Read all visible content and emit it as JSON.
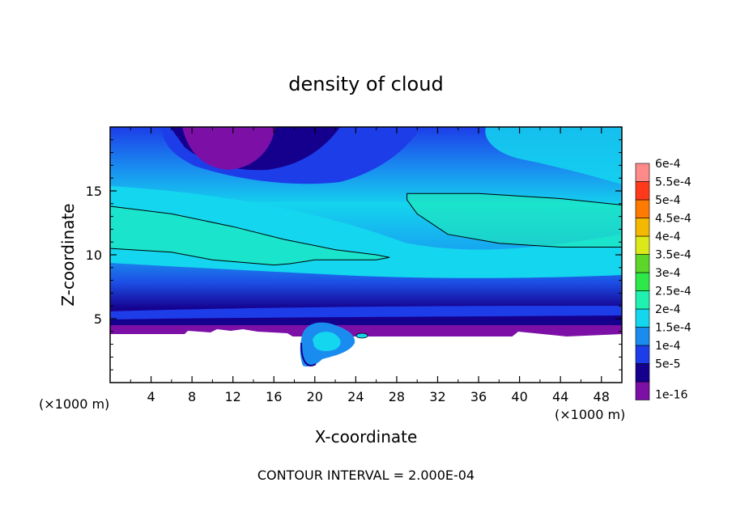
{
  "chart_data": {
    "type": "heatmap",
    "title": "density of cloud",
    "xlabel": "X-coordinate",
    "ylabel": "Z-coordinate",
    "x_unit_left": "(×1000 m)",
    "x_unit_right": "(×1000 m)",
    "xlim": [
      0,
      50
    ],
    "ylim": [
      0,
      20
    ],
    "x_ticks": [
      4,
      8,
      12,
      16,
      20,
      24,
      28,
      32,
      36,
      40,
      44,
      48
    ],
    "x_tick_labels": [
      "4",
      "8",
      "12",
      "16",
      "20",
      "24",
      "28",
      "32",
      "36",
      "40",
      "44",
      "48"
    ],
    "y_ticks": [
      5,
      10,
      15
    ],
    "y_tick_labels": [
      "5",
      "10",
      "15"
    ],
    "footer": "CONTOUR INTERVAL = 2.000E-04",
    "colorbar": {
      "levels": [
        {
          "label": "1e-16",
          "color": "#7b0fa6"
        },
        {
          "label": "5e-5",
          "color": "#15008e"
        },
        {
          "label": "1e-4",
          "color": "#1d3de8"
        },
        {
          "label": "1.5e-4",
          "color": "#1a8cf0"
        },
        {
          "label": "2e-4",
          "color": "#14d6ee"
        },
        {
          "label": "2.5e-4",
          "color": "#20f0b0"
        },
        {
          "label": "3e-4",
          "color": "#2ee84a"
        },
        {
          "label": "3.5e-4",
          "color": "#5cd628"
        },
        {
          "label": "4e-4",
          "color": "#dce81a"
        },
        {
          "label": "4.5e-4",
          "color": "#f5b800"
        },
        {
          "label": "5e-4",
          "color": "#ff7a00"
        },
        {
          "label": "5.5e-4",
          "color": "#ff3a1a"
        },
        {
          "label": "6e-4",
          "color": "#ff8a8a"
        }
      ]
    },
    "contour_2e-4": [
      [
        [
          0,
          13.8
        ],
        [
          6,
          13.2
        ],
        [
          12,
          12.2
        ],
        [
          17,
          11.2
        ],
        [
          22,
          10.4
        ],
        [
          26,
          10.0
        ],
        [
          27.3,
          9.8
        ],
        [
          26,
          9.6
        ],
        [
          20,
          9.6
        ],
        [
          17.5,
          9.3
        ],
        [
          16,
          9.2
        ],
        [
          10,
          9.6
        ],
        [
          6,
          10.2
        ],
        [
          0,
          10.5
        ]
      ],
      [
        [
          29,
          14.8
        ],
        [
          36,
          14.8
        ],
        [
          44,
          14.4
        ],
        [
          50,
          13.9
        ],
        [
          50,
          10.6
        ],
        [
          44,
          10.6
        ],
        [
          38,
          10.9
        ],
        [
          33,
          11.6
        ],
        [
          30,
          13.2
        ],
        [
          29,
          14.3
        ]
      ]
    ]
  }
}
